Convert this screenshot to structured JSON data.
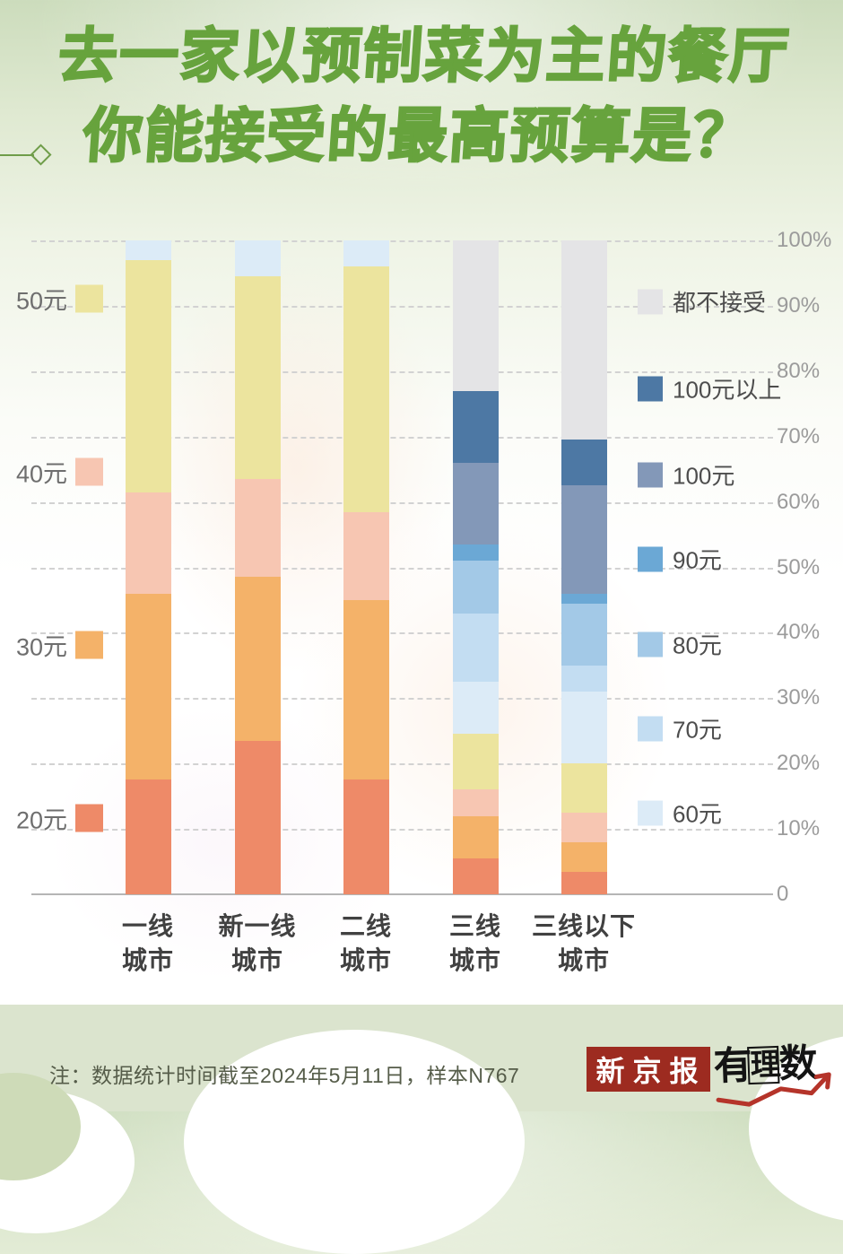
{
  "title": {
    "line1": "去一家以预制菜为主的餐厅",
    "line2": "你能接受的最高预算是？"
  },
  "chart_data": {
    "type": "bar",
    "stacked": true,
    "unit": "percent",
    "title": "去一家以预制菜为主的餐厅 你能接受的最高预算是？",
    "categories": [
      "一线城市",
      "新一线城市",
      "二线城市",
      "三线城市",
      "三线以下城市"
    ],
    "series": [
      {
        "name": "20元",
        "color": "#ee8a68",
        "values": [
          17.5,
          23.5,
          17.5,
          5.5,
          3.5
        ]
      },
      {
        "name": "30元",
        "color": "#f4b269",
        "values": [
          28.5,
          25.0,
          27.5,
          6.5,
          4.5
        ]
      },
      {
        "name": "40元",
        "color": "#f7c6b2",
        "values": [
          15.5,
          15.0,
          13.5,
          4.0,
          4.5
        ]
      },
      {
        "name": "50元",
        "color": "#ece49e",
        "values": [
          35.5,
          31.0,
          37.5,
          8.5,
          7.5
        ]
      },
      {
        "name": "60元",
        "color": "#dcebf7",
        "values": [
          3.0,
          5.5,
          4.0,
          8.0,
          11.0
        ]
      },
      {
        "name": "70元",
        "color": "#c3ddf2",
        "values": [
          0,
          0,
          0,
          10.5,
          4.0
        ]
      },
      {
        "name": "80元",
        "color": "#a3c9e7",
        "values": [
          0,
          0,
          0,
          8.0,
          9.5
        ]
      },
      {
        "name": "90元",
        "color": "#6ba8d5",
        "values": [
          0,
          0,
          0,
          2.5,
          1.5
        ]
      },
      {
        "name": "100元",
        "color": "#8398b8",
        "values": [
          0,
          0,
          0,
          12.5,
          16.5
        ]
      },
      {
        "name": "100元以上",
        "color": "#4d78a4",
        "values": [
          0,
          0,
          0,
          11.0,
          7.0
        ]
      },
      {
        "name": "都不接受",
        "color": "#e4e4e6",
        "values": [
          0,
          0,
          0,
          23.0,
          30.5
        ]
      }
    ],
    "y_axis": {
      "side": "right",
      "min": 0,
      "max": 100,
      "ticks": [
        "100%",
        "90%",
        "80%",
        "70%",
        "60%",
        "50%",
        "40%",
        "30%",
        "20%",
        "10%",
        "0"
      ]
    },
    "legend_left": [
      {
        "label": "50元",
        "color": "#ece49e"
      },
      {
        "label": "40元",
        "color": "#f7c6b2"
      },
      {
        "label": "30元",
        "color": "#f4b269"
      },
      {
        "label": "20元",
        "color": "#ee8a68"
      }
    ],
    "legend_right": [
      {
        "label": "都不接受",
        "color": "#e4e4e6"
      },
      {
        "label": "100元以上",
        "color": "#4d78a4"
      },
      {
        "label": "100元",
        "color": "#8398b8"
      },
      {
        "label": "90元",
        "color": "#6ba8d5"
      },
      {
        "label": "80元",
        "color": "#a3c9e7"
      },
      {
        "label": "70元",
        "color": "#c3ddf2"
      },
      {
        "label": "60元",
        "color": "#dcebf7"
      }
    ],
    "grid": true
  },
  "note": "注：数据统计时间截至2024年5月11日，样本N767",
  "footer": {
    "newspaper_logo": "新京报",
    "brand_logo": {
      "char1": "有",
      "char2": "理",
      "char3": "数"
    }
  },
  "colors": {
    "title_green": "#67a33d",
    "logo_red": "#9d2b20",
    "band_green": "#dbe4ce"
  }
}
